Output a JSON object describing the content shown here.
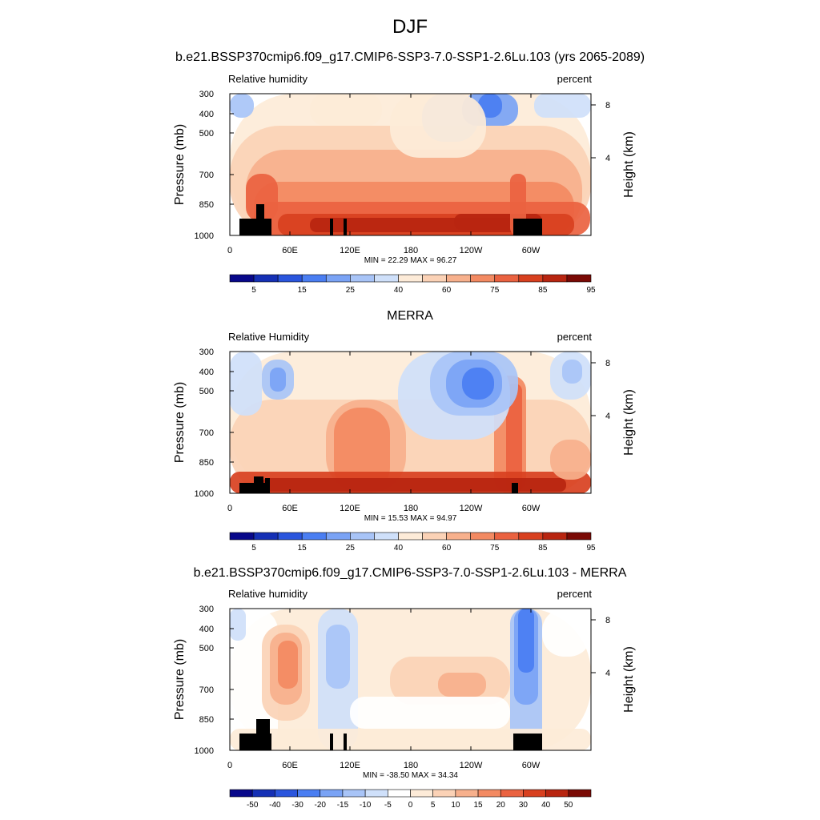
{
  "figure": {
    "title": "DJF"
  },
  "chart_data": [
    {
      "type": "heatmap",
      "panel_title": "b.e21.BSSP370cmip6.f09_g17.CMIP6-SSP3-7.0-SSP1-2.6Lu.103 (yrs 2065-2089)",
      "variable": "Relative humidity",
      "units": "percent",
      "ylabel": "Pressure (mb)",
      "y2label": "Height (km)",
      "yticks": [
        "300",
        "400",
        "500",
        "700",
        "850",
        "1000"
      ],
      "y2ticks": [
        "8",
        "4"
      ],
      "xticks": [
        "0",
        "60E",
        "120E",
        "180",
        "120W",
        "60W"
      ],
      "min": "22.29",
      "max": "96.27",
      "stats": "MIN =  22.29  MAX =  96.27",
      "colorbar_labels": [
        "5",
        "15",
        "25",
        "40",
        "60",
        "75",
        "85",
        "95"
      ],
      "colorbar_colors": [
        "#08088a",
        "#1530b5",
        "#2a55dd",
        "#4a7ef2",
        "#7aa3f5",
        "#a8c4f7",
        "#cfe0fa",
        "#fdebd8",
        "#fbd2b6",
        "#f7b08c",
        "#f38a62",
        "#ea6240",
        "#d8401f",
        "#b82510",
        "#7a0a05"
      ]
    },
    {
      "type": "heatmap",
      "panel_title": "MERRA",
      "variable": "Relative Humidity",
      "units": "percent",
      "ylabel": "Pressure (mb)",
      "y2label": "Height (km)",
      "yticks": [
        "300",
        "400",
        "500",
        "700",
        "850",
        "1000"
      ],
      "y2ticks": [
        "8",
        "4"
      ],
      "xticks": [
        "0",
        "60E",
        "120E",
        "180",
        "120W",
        "60W"
      ],
      "min": "15.53",
      "max": "94.97",
      "stats": "MIN =  15.53  MAX =  94.97",
      "colorbar_labels": [
        "5",
        "15",
        "25",
        "40",
        "60",
        "75",
        "85",
        "95"
      ],
      "colorbar_colors": [
        "#08088a",
        "#1530b5",
        "#2a55dd",
        "#4a7ef2",
        "#7aa3f5",
        "#a8c4f7",
        "#cfe0fa",
        "#fdebd8",
        "#fbd2b6",
        "#f7b08c",
        "#f38a62",
        "#ea6240",
        "#d8401f",
        "#b82510",
        "#7a0a05"
      ]
    },
    {
      "type": "heatmap",
      "panel_title": "b.e21.BSSP370cmip6.f09_g17.CMIP6-SSP3-7.0-SSP1-2.6Lu.103 - MERRA",
      "variable": "Relative humidity",
      "units": "percent",
      "ylabel": "Pressure (mb)",
      "y2label": "Height (km)",
      "yticks": [
        "300",
        "400",
        "500",
        "700",
        "850",
        "1000"
      ],
      "y2ticks": [
        "8",
        "4"
      ],
      "xticks": [
        "0",
        "60E",
        "120E",
        "180",
        "120W",
        "60W"
      ],
      "min": "-38.50",
      "max": "34.34",
      "stats": "MIN = -38.50  MAX =  34.34",
      "colorbar_labels": [
        "-50",
        "-40",
        "-30",
        "-20",
        "-15",
        "-10",
        "-5",
        "0",
        "5",
        "10",
        "15",
        "20",
        "30",
        "40",
        "50"
      ],
      "colorbar_colors": [
        "#08088a",
        "#1530b5",
        "#2a55dd",
        "#4a7ef2",
        "#7aa3f5",
        "#a8c4f7",
        "#cfe0fa",
        "#ffffff",
        "#fdebd8",
        "#fbd2b6",
        "#f7b08c",
        "#f38a62",
        "#ea6240",
        "#d8401f",
        "#b82510",
        "#7a0a05"
      ]
    }
  ]
}
